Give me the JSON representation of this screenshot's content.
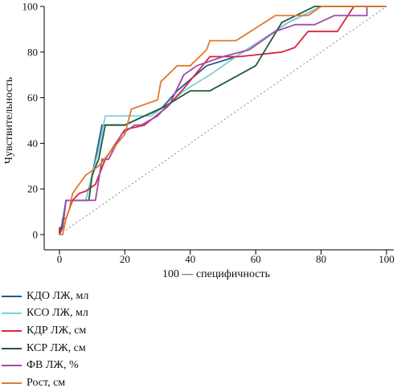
{
  "chart_data": {
    "type": "line",
    "xlabel": "100 — специфичность",
    "ylabel": "Чувствительность",
    "xlim": [
      0,
      100
    ],
    "ylim": [
      0,
      100
    ],
    "x_ticks": [
      0,
      20,
      40,
      60,
      80,
      100
    ],
    "y_ticks": [
      0,
      20,
      40,
      60,
      80,
      100
    ],
    "grid": false,
    "legend_position": "bottom-left",
    "reference_line": {
      "x": [
        0,
        100
      ],
      "y": [
        0,
        100
      ],
      "style": "dotted",
      "color": "#888888"
    },
    "series": [
      {
        "name": "КДО ЛЖ, мл",
        "color": "#1f5a8a",
        "x": [
          0,
          1,
          2,
          8,
          10,
          13,
          14,
          20,
          26,
          31,
          36,
          45,
          54,
          70,
          80,
          100
        ],
        "y": [
          0,
          4,
          15,
          15,
          26,
          48,
          48,
          48,
          52,
          55,
          63,
          74,
          78,
          93,
          100,
          100
        ]
      },
      {
        "name": "КСО ЛЖ, мл",
        "color": "#7fd0dc",
        "x": [
          0,
          1,
          2,
          8,
          10,
          12,
          14,
          20,
          22,
          28,
          34,
          38,
          46,
          54,
          70,
          80,
          100
        ],
        "y": [
          0,
          7,
          15,
          15,
          26,
          37,
          52,
          52,
          52,
          52,
          58,
          63,
          70,
          78,
          93,
          100,
          100
        ]
      },
      {
        "name": "КДР ЛЖ, см",
        "color": "#d9273a",
        "x": [
          0,
          0,
          1,
          1,
          2,
          4,
          6,
          8,
          11,
          14,
          20,
          26,
          33,
          38,
          46,
          55,
          68,
          72,
          76,
          85,
          90,
          100
        ],
        "y": [
          0,
          3,
          3,
          7,
          7,
          15,
          18,
          19,
          22,
          33,
          46,
          48,
          56,
          64,
          78,
          78,
          80,
          82,
          89,
          89,
          100,
          100
        ]
      },
      {
        "name": "КСР ЛЖ, см",
        "color": "#1f5c3a",
        "x": [
          0,
          1,
          2,
          4,
          9,
          10,
          12,
          14,
          20,
          26,
          32,
          40,
          46,
          60,
          68,
          78,
          100
        ],
        "y": [
          0,
          5,
          15,
          15,
          15,
          26,
          33,
          48,
          48,
          52,
          56,
          63,
          63,
          74,
          93,
          100,
          100
        ]
      },
      {
        "name": "ФВ ЛЖ, %",
        "color": "#a04aa6",
        "x": [
          0,
          1,
          2,
          11,
          13,
          15,
          19,
          23,
          25,
          30,
          34,
          38,
          42,
          50,
          58,
          66,
          72,
          78,
          84,
          94,
          94,
          100
        ],
        "y": [
          0,
          3,
          15,
          15,
          33,
          33,
          44,
          48,
          48,
          52,
          58,
          70,
          74,
          78,
          81,
          89,
          92,
          92,
          96,
          96,
          100,
          100
        ]
      },
      {
        "name": "Рост, см",
        "color": "#e07a2f",
        "x": [
          0,
          1,
          2,
          3,
          4,
          6,
          8,
          12,
          16,
          20,
          22,
          30,
          31,
          36,
          40,
          45,
          46,
          54,
          66,
          76,
          80,
          100
        ],
        "y": [
          0,
          0,
          7,
          11,
          18,
          22,
          26,
          30,
          37,
          44,
          55,
          59,
          67,
          74,
          74,
          81,
          85,
          85,
          96,
          96,
          100,
          100
        ]
      }
    ]
  }
}
